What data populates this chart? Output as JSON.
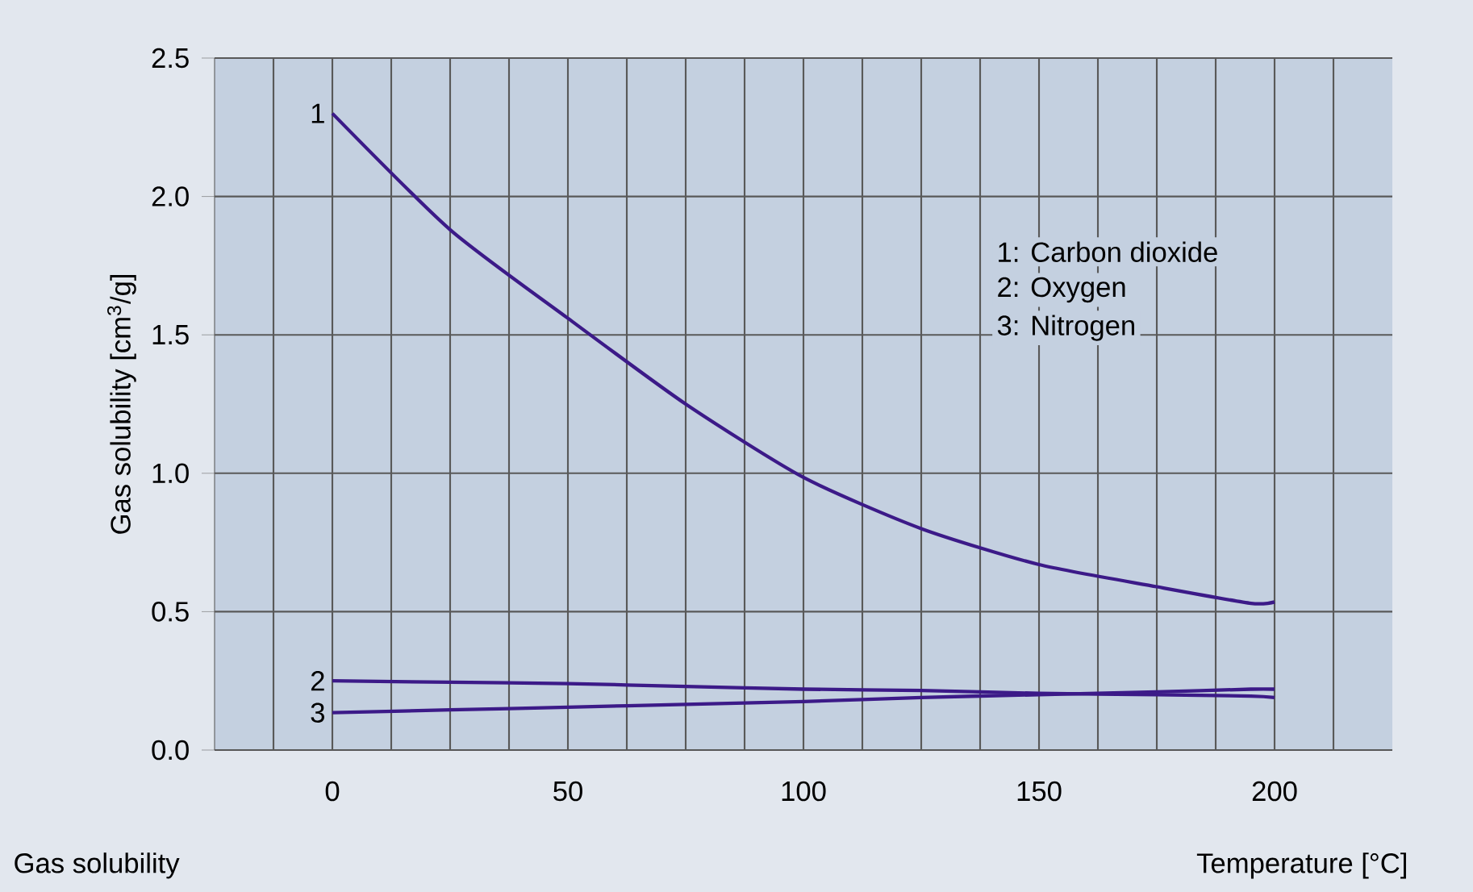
{
  "chart_data": {
    "type": "line",
    "ylabel": "Gas solubility [cm$^{3}$/g]",
    "xlabel": "Temperature [°C]",
    "annotations": [
      "1: Carbon dioxide",
      "2: Oxygen",
      "3: Nitrogen",
      "Gas solubility"
    ],
    "x": [
      0,
      25,
      50,
      75,
      100,
      125,
      150,
      175,
      195,
      200
    ],
    "series": [
      {
        "name": "1",
        "color": "#3c1a88",
        "values": [
          2.3,
          1.88,
          1.56,
          1.25,
          0.985,
          0.8,
          0.67,
          0.59,
          0.53,
          0.535
        ]
      },
      {
        "name": "2",
        "color": "#3c1a88",
        "values": [
          0.25,
          0.245,
          0.24,
          0.23,
          0.22,
          0.215,
          0.205,
          0.2,
          0.195,
          0.19
        ]
      },
      {
        "name": "3",
        "color": "#3c1a88",
        "values": [
          0.135,
          0.145,
          0.155,
          0.165,
          0.175,
          0.19,
          0.2,
          0.21,
          0.22,
          0.22
        ]
      }
    ],
    "xlim": [
      -25,
      225
    ],
    "ylim": [
      0,
      2.5
    ],
    "xticks": [
      {
        "value": -12.5,
        "label": null
      },
      0,
      {
        "value": 12.5,
        "label": null
      },
      {
        "value": 25,
        "label": null
      },
      {
        "value": 37.5,
        "label": null
      },
      50,
      {
        "value": 62.5,
        "label": null
      },
      {
        "value": 75,
        "label": null
      },
      {
        "value": 87.5,
        "label": null
      },
      100,
      {
        "value": 112.5,
        "label": null
      },
      {
        "value": 125,
        "label": null
      },
      {
        "value": 137.5,
        "label": null
      },
      150,
      {
        "value": 162.5,
        "label": null
      },
      {
        "value": 175,
        "label": null
      },
      {
        "value": 187.5,
        "label": null
      },
      200,
      {
        "value": 212.5,
        "label": null
      }
    ],
    "yticks": [
      {
        "value": 0,
        "label": "0.0"
      },
      0.5,
      {
        "value": 1,
        "label": "1.0"
      },
      1.5,
      {
        "value": 2,
        "label": "2.0"
      },
      2.5
    ],
    "grid": true,
    "marker": "none",
    "line_style": "solid"
  }
}
